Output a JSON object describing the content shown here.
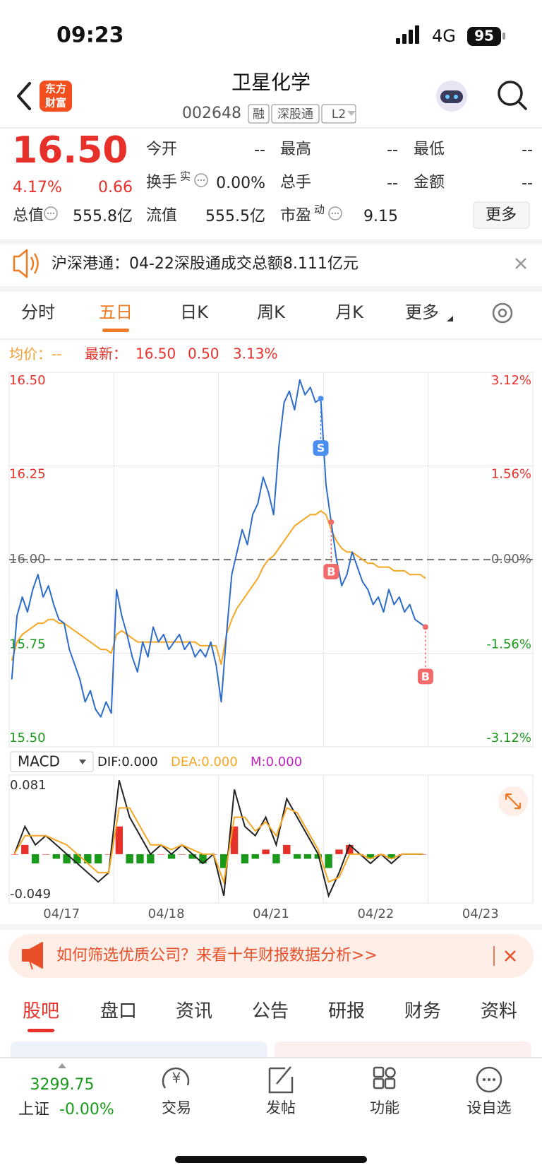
{
  "status_bar": {
    "time": "09:23",
    "network": "4G",
    "battery": "95"
  },
  "header": {
    "title": "卫星化学",
    "code": "002648",
    "tags": [
      "融",
      "深股通",
      "L2"
    ],
    "logo": [
      "东方",
      "财富"
    ]
  },
  "quote": {
    "price": "16.50",
    "change_pct": "4.17%",
    "change": "0.66",
    "fields": [
      {
        "label": "今开",
        "value": "--"
      },
      {
        "label": "最高",
        "value": "--"
      },
      {
        "label": "最低",
        "value": "--"
      },
      {
        "label": "换手",
        "sup": "实",
        "info_icon": true,
        "value": "0.00%"
      },
      {
        "label": "总手",
        "value": "--"
      },
      {
        "label": "金额",
        "value": "--"
      },
      {
        "label": "总值",
        "info_icon": true,
        "value": "555.8亿"
      },
      {
        "label": "流值",
        "value": "555.5亿"
      },
      {
        "label": "市盈",
        "sup": "动",
        "info_icon": true,
        "value": "9.15"
      }
    ],
    "more_button": "更多"
  },
  "notice": "沪深港通：04-22深股通成交总额8.111亿元",
  "tabs": {
    "items": [
      "分时",
      "五日",
      "日K",
      "周K",
      "月K",
      "更多"
    ],
    "active": 1
  },
  "legend": {
    "avg_label": "均价：",
    "avg_value": "--",
    "last_label": "最新：",
    "last_price": "16.50",
    "last_change": "0.50",
    "last_pct": "3.13%"
  },
  "chart_data": [
    {
      "type": "line",
      "day_labels": [
        "04/17",
        "04/18",
        "04/21",
        "04/22",
        "04/23"
      ],
      "series": [
        {
          "color": "#2d6cc9",
          "values": [
            15.68,
            15.85,
            15.9,
            15.86,
            15.92,
            15.96,
            15.9,
            15.93,
            15.88,
            15.84,
            15.83,
            15.76,
            15.72,
            15.68,
            15.62,
            15.65,
            15.6,
            15.58,
            15.62,
            15.59,
            15.92,
            15.85,
            15.8,
            15.74,
            15.7,
            15.78,
            15.74,
            15.82,
            15.78,
            15.8,
            15.76,
            15.78,
            15.8,
            15.76,
            15.78,
            15.74,
            15.76,
            15.74,
            15.78,
            15.72,
            15.62,
            15.8,
            15.96,
            16.02,
            16.08,
            16.04,
            16.12,
            16.15,
            16.22,
            16.18,
            16.12,
            16.3,
            16.42,
            16.45,
            16.4,
            16.48,
            16.44,
            16.46,
            16.42,
            16.43,
            16.2,
            16.1,
            16.0,
            15.93,
            15.96,
            16.02,
            15.98,
            15.94,
            15.92,
            15.88,
            15.9,
            15.86,
            15.92,
            15.88,
            15.9,
            15.86,
            15.88,
            15.84,
            15.83,
            15.82
          ]
        },
        {
          "color": "#f5a623",
          "values": [
            15.73,
            15.78,
            15.8,
            15.81,
            15.82,
            15.83,
            15.83,
            15.84,
            15.84,
            15.83,
            15.83,
            15.82,
            15.81,
            15.8,
            15.79,
            15.78,
            15.77,
            15.76,
            15.76,
            15.75,
            15.8,
            15.81,
            15.8,
            15.79,
            15.78,
            15.78,
            15.78,
            15.78,
            15.78,
            15.78,
            15.78,
            15.78,
            15.78,
            15.78,
            15.78,
            15.78,
            15.77,
            15.77,
            15.77,
            15.77,
            15.72,
            15.8,
            15.84,
            15.87,
            15.89,
            15.91,
            15.93,
            15.95,
            15.98,
            16.0,
            16.01,
            16.03,
            16.05,
            16.07,
            16.09,
            16.1,
            16.11,
            16.12,
            16.12,
            16.13,
            16.12,
            16.08,
            16.05,
            16.03,
            16.02,
            16.02,
            16.01,
            16.0,
            15.99,
            15.99,
            15.98,
            15.98,
            15.98,
            15.97,
            15.97,
            15.97,
            15.96,
            15.96,
            15.96,
            15.95
          ]
        }
      ],
      "ylim": [
        15.5,
        16.5
      ],
      "yticks": [
        {
          "value": 16.5,
          "label": "16.50"
        },
        {
          "value": 16.25,
          "label": "16.25"
        },
        {
          "value": 16,
          "label": "16.00"
        },
        {
          "value": 15.75,
          "label": "15.75"
        },
        {
          "value": 15.5,
          "label": "15.50"
        }
      ],
      "y2lim": [
        -3.12,
        3.12
      ],
      "y2ticks": [
        {
          "value": 3.12,
          "label": "3.12%"
        },
        {
          "value": 1.56,
          "label": "1.56%"
        },
        {
          "value": 0,
          "label": "0.00%"
        },
        {
          "value": -1.56,
          "label": "-1.56%"
        },
        {
          "value": -3.12,
          "label": "-3.12%"
        }
      ],
      "grid": true,
      "signals": [
        {
          "label": "S",
          "point": 59,
          "color": "#4a8ff0"
        },
        {
          "label": "B",
          "point": 61,
          "color": "#f26b6b"
        },
        {
          "label": "B",
          "point": 79,
          "color": "#f26b6b"
        }
      ]
    },
    {
      "type": "macd",
      "title": "MACD",
      "indicators": [
        {
          "label": "DIF:",
          "value": "0.000",
          "color": "#222222"
        },
        {
          "label": "DEA:",
          "value": "0.000",
          "color": "#f5a623"
        },
        {
          "label": "M:",
          "value": "0.000",
          "color": "#c020c0"
        }
      ],
      "ylim": [
        -0.049,
        0.081
      ],
      "yticks": [
        0.081,
        -0.049
      ],
      "series": [
        {
          "color": "#222222",
          "values": [
            0,
            0.03,
            0.01,
            0.02,
            0.01,
            0,
            -0.01,
            -0.02,
            -0.03,
            -0.02,
            0.08,
            0.04,
            0.02,
            0,
            0.01,
            0,
            0.01,
            0,
            -0.01,
            0,
            -0.045,
            0.07,
            0.03,
            0.02,
            0.04,
            0.01,
            0.06,
            0.04,
            0.02,
            0,
            -0.045,
            -0.02,
            0.01,
            0,
            -0.01,
            0,
            -0.01,
            0,
            0,
            0
          ]
        },
        {
          "color": "#f5a623",
          "values": [
            0,
            0.02,
            0.02,
            0.02,
            0.015,
            0.01,
            0,
            -0.01,
            -0.02,
            -0.02,
            0.05,
            0.05,
            0.03,
            0.01,
            0.01,
            0.005,
            0.01,
            0.005,
            0,
            0,
            -0.03,
            0.04,
            0.04,
            0.025,
            0.035,
            0.02,
            0.05,
            0.045,
            0.025,
            0.005,
            -0.03,
            -0.025,
            0,
            0,
            -0.005,
            0,
            -0.005,
            0,
            0,
            0
          ]
        }
      ],
      "histogram": {
        "up_color": "#e8302a",
        "down_color": "#1a9a1a",
        "values": [
          0,
          0.01,
          -0.01,
          0,
          -0.005,
          -0.01,
          -0.01,
          -0.01,
          -0.01,
          0,
          0.03,
          -0.01,
          -0.01,
          -0.01,
          0,
          -0.005,
          0,
          -0.005,
          -0.01,
          0,
          -0.015,
          0.03,
          -0.01,
          -0.005,
          0.005,
          -0.01,
          0.01,
          -0.005,
          -0.005,
          -0.005,
          -0.015,
          0.005,
          0.01,
          0,
          -0.005,
          0,
          -0.005,
          0,
          0,
          0
        ]
      }
    }
  ],
  "ad": "如何筛选优质公司？来看十年财报数据分析>>",
  "sub_tabs": {
    "items": [
      "股吧",
      "盘口",
      "资讯",
      "公告",
      "研报",
      "财务",
      "资料"
    ],
    "active": 0
  },
  "bottom_nav": {
    "index_value": "3299.75",
    "index_name": "上证",
    "index_change": "-0.00%",
    "items": [
      "交易",
      "发帖",
      "功能",
      "设自选"
    ]
  }
}
